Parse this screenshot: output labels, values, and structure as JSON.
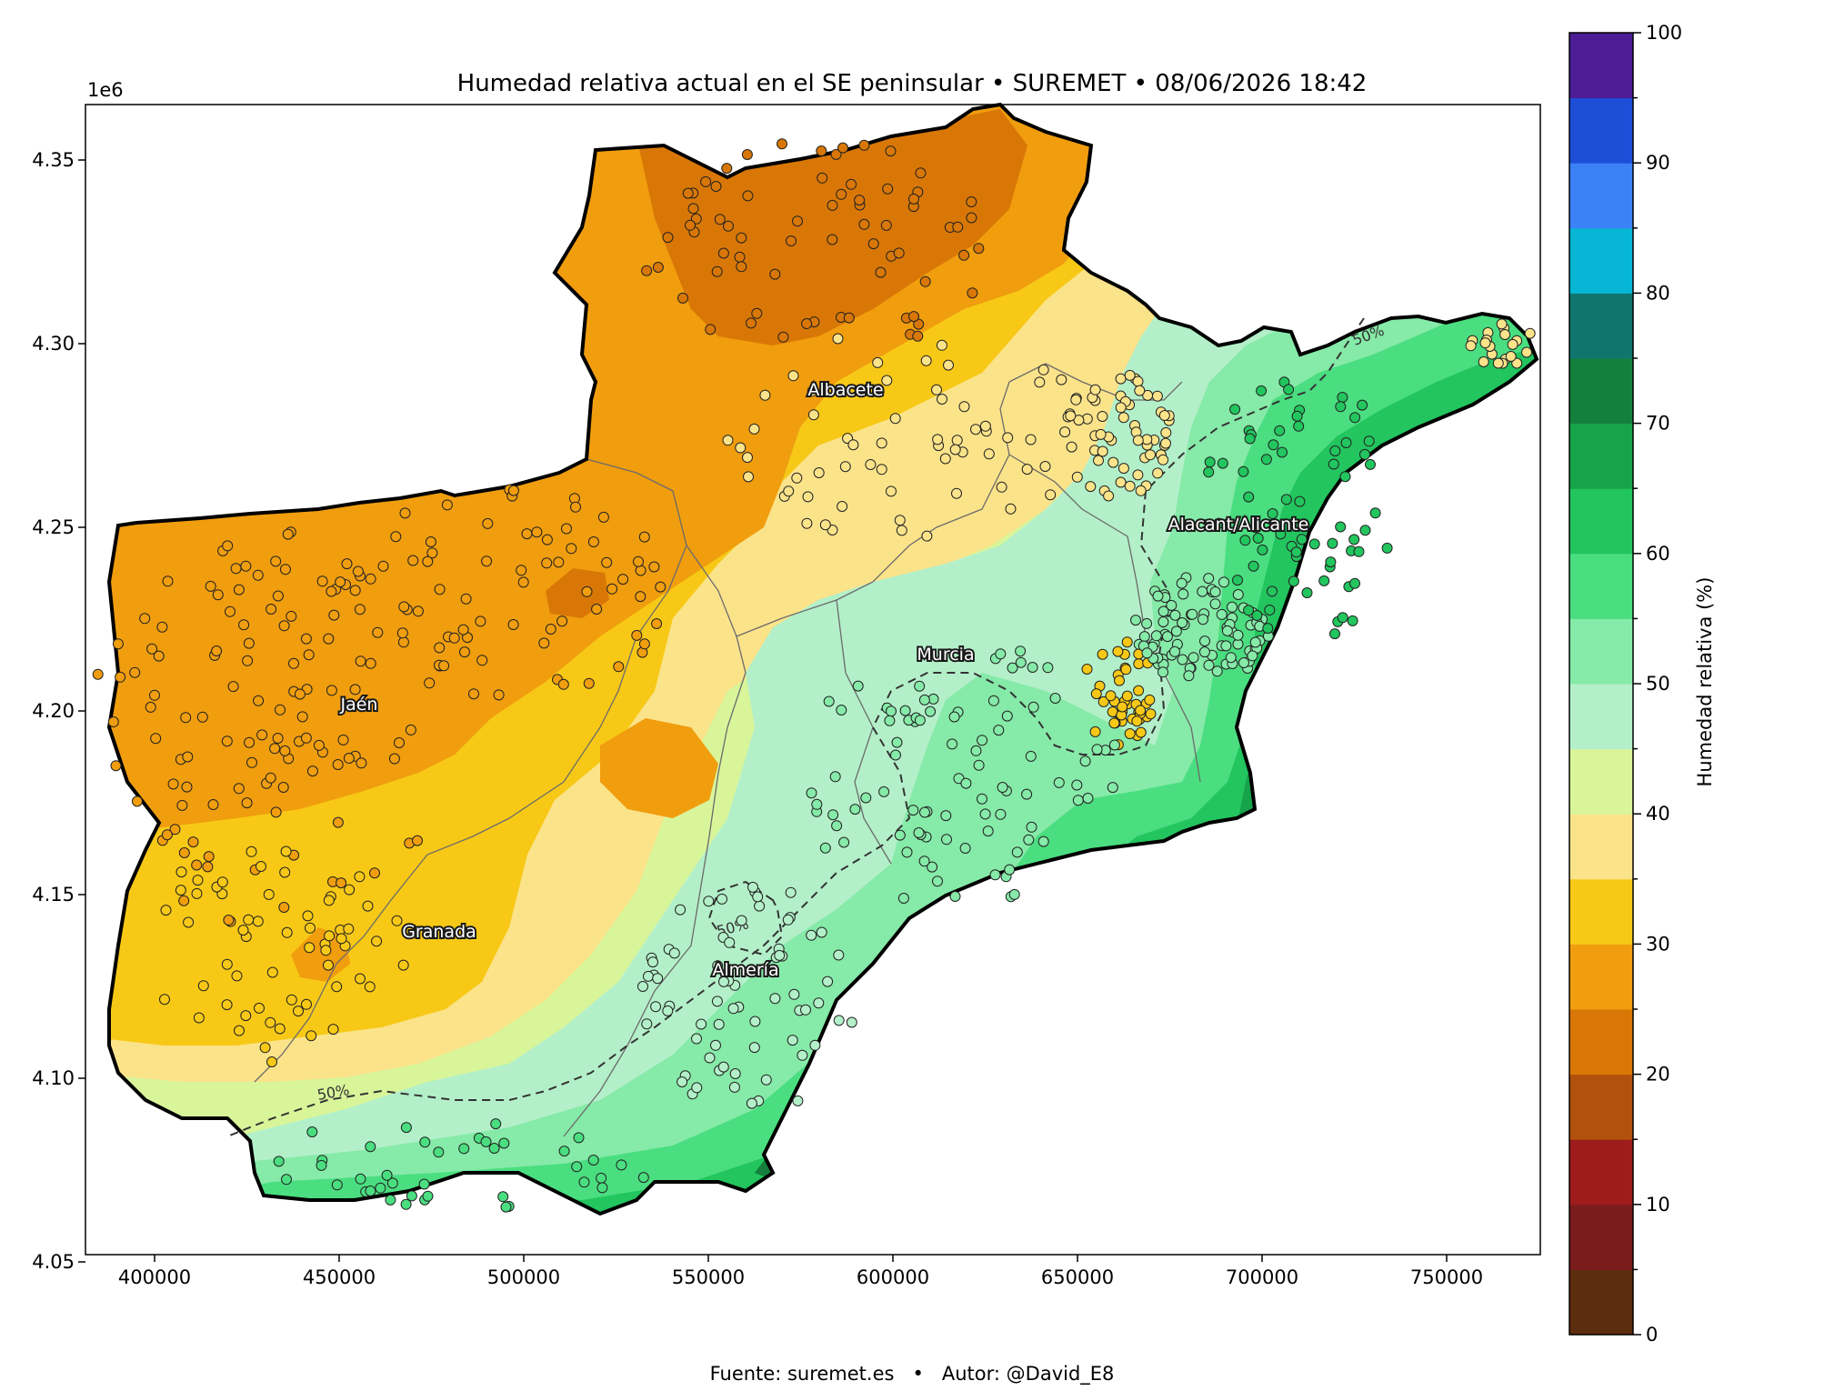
{
  "title": "Humedad relativa actual en el SE peninsular • SUREMET • 08/06/2026 18:42",
  "footer": "Fuente: suremet.es   •   Autor: @David_E8",
  "axes": {
    "x_ticks": [
      "400000",
      "450000",
      "500000",
      "550000",
      "600000",
      "650000",
      "700000",
      "750000"
    ],
    "y_ticks": [
      "4.05",
      "4.10",
      "4.15",
      "4.20",
      "4.25",
      "4.30",
      "4.35"
    ],
    "y_offset_label": "1e6"
  },
  "colorbar": {
    "label": "Humedad relativa (%)",
    "ticks": [
      "0",
      "10",
      "20",
      "30",
      "40",
      "50",
      "60",
      "70",
      "80",
      "90",
      "100"
    ],
    "levels": [
      {
        "from": 0,
        "to": 5,
        "color": "#5c2d0e"
      },
      {
        "from": 5,
        "to": 10,
        "color": "#7b1c1c"
      },
      {
        "from": 10,
        "to": 15,
        "color": "#9e1c1c"
      },
      {
        "from": 15,
        "to": 20,
        "color": "#b0520e"
      },
      {
        "from": 20,
        "to": 25,
        "color": "#d97706"
      },
      {
        "from": 25,
        "to": 30,
        "color": "#f09d0e"
      },
      {
        "from": 30,
        "to": 35,
        "color": "#f7c916"
      },
      {
        "from": 35,
        "to": 40,
        "color": "#fbe38a"
      },
      {
        "from": 40,
        "to": 45,
        "color": "#d9f59a"
      },
      {
        "from": 45,
        "to": 50,
        "color": "#b3f0c9"
      },
      {
        "from": 50,
        "to": 55,
        "color": "#86eaa8"
      },
      {
        "from": 55,
        "to": 60,
        "color": "#4ade80"
      },
      {
        "from": 60,
        "to": 65,
        "color": "#22c55e"
      },
      {
        "from": 65,
        "to": 70,
        "color": "#16a34a"
      },
      {
        "from": 70,
        "to": 75,
        "color": "#15803d"
      },
      {
        "from": 75,
        "to": 80,
        "color": "#0f766e"
      },
      {
        "from": 80,
        "to": 85,
        "color": "#06b6d4"
      },
      {
        "from": 85,
        "to": 90,
        "color": "#3b82f6"
      },
      {
        "from": 90,
        "to": 95,
        "color": "#1d4ed8"
      },
      {
        "from": 95,
        "to": 100,
        "color": "#4c1d95"
      }
    ]
  },
  "cities": [
    {
      "name": "Albacete"
    },
    {
      "name": "Jaén"
    },
    {
      "name": "Murcia"
    },
    {
      "name": "Alacant/Alicante"
    },
    {
      "name": "Granada"
    },
    {
      "name": "Almería"
    }
  ],
  "contour_labels": [
    "50%",
    "50%",
    "50%"
  ]
}
